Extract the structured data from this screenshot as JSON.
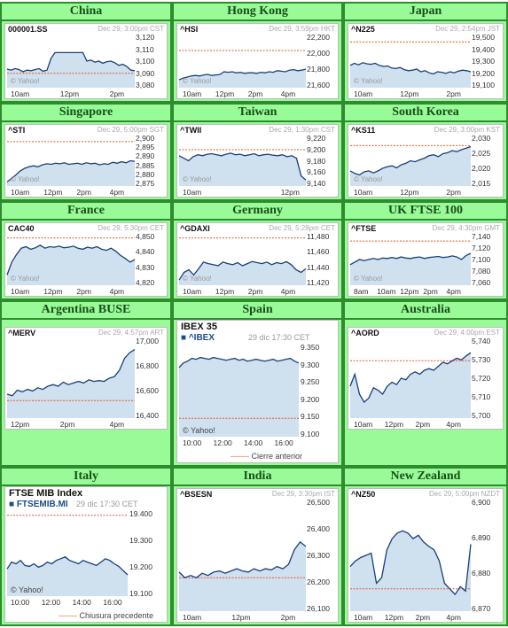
{
  "cells": [
    {
      "title": "China",
      "symbol": "000001.SS",
      "meta": "Dec 29, 3:00pm CST",
      "y_labels": [
        "3,120",
        "3,110",
        "3,100",
        "3,090",
        "3,080"
      ],
      "x_labels": [
        "10am",
        "12pm",
        "2pm"
      ],
      "credit": "© Yahoo!",
      "series": [
        0.35,
        0.33,
        0.36,
        0.34,
        0.3,
        0.33,
        0.32,
        0.34,
        0.36,
        0.31,
        0.33,
        0.55,
        0.66,
        0.66,
        0.66,
        0.66,
        0.66,
        0.66,
        0.66,
        0.66,
        0.5,
        0.52,
        0.48,
        0.5,
        0.46,
        0.49,
        0.5,
        0.47,
        0.42,
        0.44,
        0.4,
        0.33,
        0.32
      ],
      "prev": 0.27
    },
    {
      "title": "Hong Kong",
      "symbol": "^HSI",
      "meta": "Dec 29, 3:59pm HKT",
      "y_labels": [
        "22,200",
        "22,000",
        "21,800",
        "21,600"
      ],
      "x_labels": [
        "10am",
        "12pm",
        "2pm",
        "4pm"
      ],
      "credit": "© Yahoo!",
      "series": [
        0.15,
        0.18,
        0.2,
        0.22,
        0.23,
        0.22,
        0.24,
        0.25,
        0.23,
        0.24,
        0.25,
        0.3,
        0.29,
        0.3,
        0.28,
        0.29,
        0.27,
        0.28,
        0.28,
        0.27,
        0.29,
        0.28,
        0.3,
        0.29,
        0.32,
        0.31,
        0.3,
        0.33,
        0.34,
        0.32,
        0.33,
        0.35
      ],
      "prev": 0.7
    },
    {
      "title": "Japan",
      "symbol": "^N225",
      "meta": "Dec 29, 2:54pm JST",
      "y_labels": [
        "19,500",
        "19,400",
        "19,300",
        "19,200",
        "19,100"
      ],
      "x_labels": [
        "10am",
        "12pm",
        "2pm"
      ],
      "credit": "© Yahoo!",
      "series": [
        0.42,
        0.46,
        0.43,
        0.47,
        0.45,
        0.44,
        0.46,
        0.42,
        0.4,
        0.41,
        0.37,
        0.36,
        0.38,
        0.34,
        0.32,
        0.33,
        0.35,
        0.3,
        0.32,
        0.28,
        0.26,
        0.3,
        0.29,
        0.27,
        0.3,
        0.28,
        0.31,
        0.33,
        0.32,
        0.3
      ],
      "prev": 0.86
    },
    {
      "title": "Singapore",
      "symbol": "^STI",
      "meta": "Dec 29, 5:00pm SGT",
      "y_labels": [
        "2,900",
        "2,895",
        "2,890",
        "2,885",
        "2,880",
        "2,875"
      ],
      "x_labels": [
        "10am",
        "12pm",
        "2pm",
        "4pm"
      ],
      "credit": "© Yahoo!",
      "series": [
        0.08,
        0.15,
        0.22,
        0.3,
        0.35,
        0.38,
        0.4,
        0.38,
        0.42,
        0.44,
        0.43,
        0.45,
        0.44,
        0.46,
        0.43,
        0.44,
        0.45,
        0.43,
        0.46,
        0.44,
        0.45,
        0.42,
        0.44,
        0.43,
        0.47,
        0.45,
        0.48,
        0.46,
        0.5,
        0.49
      ],
      "prev": 0.88
    },
    {
      "title": "Taiwan",
      "symbol": "^TWII",
      "meta": "Dec 29, 1:30pm CST",
      "y_labels": [
        "9,220",
        "9,200",
        "9,180",
        "9,160",
        "9,140"
      ],
      "x_labels": [
        "10am",
        "12pm"
      ],
      "credit": "© Yahoo!",
      "series": [
        0.6,
        0.55,
        0.5,
        0.58,
        0.62,
        0.6,
        0.63,
        0.64,
        0.62,
        0.6,
        0.63,
        0.65,
        0.62,
        0.63,
        0.6,
        0.62,
        0.64,
        0.6,
        0.62,
        0.63,
        0.61,
        0.6,
        0.62,
        0.58,
        0.6,
        0.55,
        0.2,
        0.12
      ],
      "prev": 0.72
    },
    {
      "title": "South Korea",
      "symbol": "^KS11",
      "meta": "Dec 29, 3:00pm KST",
      "y_labels": [
        "2,030",
        "2,025",
        "2,020",
        "2,015"
      ],
      "x_labels": [
        "10am",
        "12pm",
        "2pm"
      ],
      "credit": "© Yahoo!",
      "series": [
        0.3,
        0.25,
        0.22,
        0.28,
        0.3,
        0.26,
        0.3,
        0.35,
        0.38,
        0.4,
        0.36,
        0.42,
        0.45,
        0.5,
        0.48,
        0.52,
        0.55,
        0.6,
        0.62,
        0.58,
        0.64,
        0.66,
        0.7,
        0.68,
        0.72,
        0.75,
        0.78
      ],
      "prev": 0.8
    },
    {
      "title": "France",
      "symbol": "CAC40",
      "meta": "Dec 29, 5:30pm CET",
      "y_labels": [
        "4,850",
        "4,840",
        "4,830",
        "4,820"
      ],
      "x_labels": [
        "10am",
        "12pm",
        "2pm",
        "4pm"
      ],
      "credit": "© Yahoo!",
      "series": [
        0.2,
        0.45,
        0.6,
        0.72,
        0.75,
        0.7,
        0.73,
        0.78,
        0.72,
        0.75,
        0.74,
        0.76,
        0.73,
        0.74,
        0.76,
        0.72,
        0.7,
        0.74,
        0.72,
        0.75,
        0.7,
        0.68,
        0.72,
        0.66,
        0.58,
        0.52,
        0.45,
        0.5
      ],
      "prev": 0.92
    },
    {
      "title": "Germany",
      "symbol": "^GDAXI",
      "meta": "Dec 29, 5:28pm CET",
      "y_labels": [
        "11,480",
        "11,460",
        "11,440",
        "11,420"
      ],
      "x_labels": [
        "10am",
        "12pm",
        "2pm",
        "4pm"
      ],
      "credit": "© Yahoo!",
      "series": [
        0.1,
        0.25,
        0.3,
        0.2,
        0.32,
        0.45,
        0.42,
        0.4,
        0.38,
        0.45,
        0.42,
        0.4,
        0.44,
        0.38,
        0.42,
        0.46,
        0.44,
        0.42,
        0.45,
        0.4,
        0.44,
        0.42,
        0.46,
        0.4,
        0.3,
        0.25,
        0.32
      ],
      "prev": 0.92
    },
    {
      "title": "UK FTSE 100",
      "symbol": "^FTSE",
      "meta": "Dec 29, 4:30pm GMT",
      "y_labels": [
        "7,140",
        "7,120",
        "7,100",
        "7,080",
        "7,060"
      ],
      "x_labels": [
        "8am",
        "10am",
        "12pm",
        "2pm",
        "4pm"
      ],
      "credit": "© Yahoo!",
      "series": [
        0.4,
        0.45,
        0.5,
        0.48,
        0.5,
        0.52,
        0.5,
        0.53,
        0.52,
        0.54,
        0.52,
        0.55,
        0.53,
        0.52,
        0.54,
        0.55,
        0.52,
        0.54,
        0.55,
        0.56,
        0.54,
        0.55,
        0.57,
        0.55,
        0.5,
        0.58,
        0.62
      ],
      "prev": 0.86
    },
    {
      "title": "Argentina BUSE",
      "symbol": "^MERV",
      "meta": "Dec 29, 4:57pm ART",
      "y_labels": [
        "17,000",
        "16,800",
        "16,600",
        "16,400"
      ],
      "x_labels": [
        "12pm",
        "2pm",
        "4pm"
      ],
      "credit": "",
      "series": [
        0.3,
        0.28,
        0.35,
        0.33,
        0.36,
        0.34,
        0.38,
        0.36,
        0.4,
        0.42,
        0.4,
        0.45,
        0.42,
        0.44,
        0.46,
        0.44,
        0.48,
        0.46,
        0.47,
        0.46,
        0.5,
        0.52,
        0.6,
        0.75,
        0.82,
        0.86
      ],
      "prev": 0.22
    },
    {
      "title": "Spain",
      "big": true,
      "bigtitle": "IBEX 35",
      "symbol": "^IBEX",
      "meta": "29 dic 17:30 CET",
      "y_labels": [
        "9.350",
        "9.300",
        "9.250",
        "9.200",
        "9.150",
        "9.100"
      ],
      "x_labels": [
        "10:00",
        "12:00",
        "14:00",
        "16:00"
      ],
      "credit": "© Yahoo!",
      "footer": "Cierre anterior",
      "series": [
        0.75,
        0.8,
        0.82,
        0.85,
        0.84,
        0.86,
        0.85,
        0.84,
        0.86,
        0.85,
        0.84,
        0.83,
        0.84,
        0.85,
        0.83,
        0.84,
        0.82,
        0.83,
        0.84,
        0.83,
        0.82,
        0.83,
        0.84,
        0.82,
        0.83,
        0.84,
        0.85,
        0.82,
        0.8
      ],
      "prev": 0.2
    },
    {
      "title": "Australia",
      "symbol": "^AORD",
      "meta": "Dec 29, 4:00pm EST",
      "y_labels": [
        "5,740",
        "5,730",
        "5,720",
        "5,710",
        "5,700"
      ],
      "x_labels": [
        "10am",
        "12pm",
        "2pm",
        "4pm"
      ],
      "credit": "",
      "series": [
        0.4,
        0.55,
        0.3,
        0.2,
        0.25,
        0.38,
        0.35,
        0.3,
        0.4,
        0.45,
        0.42,
        0.5,
        0.48,
        0.55,
        0.58,
        0.55,
        0.6,
        0.62,
        0.6,
        0.65,
        0.7,
        0.68,
        0.72,
        0.75,
        0.73,
        0.78,
        0.82
      ],
      "prev": 0.72
    },
    {
      "title": "Italy",
      "big": true,
      "bigtitle": "FTSE MIB Index",
      "symbol": "FTSEMIB.MI",
      "meta": "29 dic 17:30 CET",
      "y_labels": [
        "19.400",
        "19.300",
        "19.200",
        "19.100"
      ],
      "x_labels": [
        "10:00",
        "12:00",
        "14:00",
        "16:00"
      ],
      "credit": "© Yahoo!",
      "footer": "Chiusura precedente",
      "series": [
        0.32,
        0.4,
        0.38,
        0.42,
        0.36,
        0.35,
        0.38,
        0.34,
        0.36,
        0.4,
        0.38,
        0.42,
        0.44,
        0.46,
        0.42,
        0.4,
        0.38,
        0.42,
        0.4,
        0.38,
        0.36,
        0.4,
        0.44,
        0.42,
        0.38,
        0.35,
        0.3,
        0.25
      ],
      "prev": 0.95
    },
    {
      "title": "India",
      "symbol": "^BSESN",
      "meta": "Dec 29, 3:30pm IST",
      "y_labels": [
        "26,500",
        "26,400",
        "26,300",
        "26,200",
        "26,100"
      ],
      "x_labels": [
        "10am",
        "12pm",
        "2pm"
      ],
      "credit": "",
      "series": [
        0.35,
        0.3,
        0.32,
        0.3,
        0.34,
        0.32,
        0.35,
        0.36,
        0.34,
        0.36,
        0.38,
        0.36,
        0.35,
        0.38,
        0.36,
        0.38,
        0.37,
        0.4,
        0.38,
        0.42,
        0.55,
        0.62,
        0.58
      ],
      "prev": 0.3
    },
    {
      "title": "New Zealand",
      "symbol": "^NZ50",
      "meta": "Dec 29, 5:00pm NZDT",
      "y_labels": [
        "6,900",
        "6,890",
        "6,880",
        "6,870"
      ],
      "x_labels": [
        "10am",
        "12pm",
        "2pm",
        "4pm"
      ],
      "credit": "",
      "series": [
        0.4,
        0.45,
        0.48,
        0.5,
        0.52,
        0.25,
        0.3,
        0.55,
        0.65,
        0.7,
        0.72,
        0.7,
        0.65,
        0.68,
        0.62,
        0.58,
        0.55,
        0.45,
        0.25,
        0.2,
        0.15,
        0.22,
        0.18,
        0.6
      ],
      "prev": 0.2
    }
  ],
  "colors": {
    "border": "#2e8b2e",
    "cell_bg": "#98fb98",
    "line": "#1a3f7a",
    "fill": "#cfe0ef",
    "prev": "#e05a2b"
  }
}
